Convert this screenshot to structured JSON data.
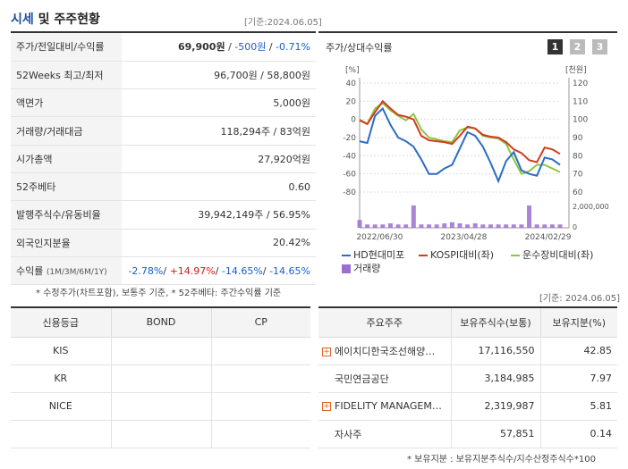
{
  "header": {
    "title_a": "시세",
    "title_b": " 및 주주현황",
    "ref_date": "[기준:2024.06.05]"
  },
  "price": {
    "rows": [
      {
        "label": "주가/전일대비/수익률",
        "value_a": "69,900원",
        "sep1": " / ",
        "value_b": "-500원",
        "sep2": " / ",
        "value_c": "-0.71%"
      },
      {
        "label": "52Weeks 최고/최저",
        "value": "96,700원 / 58,800원"
      },
      {
        "label": "액면가",
        "value": "5,000원"
      },
      {
        "label": "거래량/거래대금",
        "value": "118,294주 / 83억원"
      },
      {
        "label": "시가총액",
        "value": "27,920억원"
      },
      {
        "label": "52주베타",
        "value": "0.60"
      },
      {
        "label": "발행주식수/유동비율",
        "value": "39,942,149주 / 56.95%"
      },
      {
        "label": "외국인지분율",
        "value": "20.42%"
      }
    ],
    "return_row": {
      "label": "수익률",
      "label_small": "(1M/3M/6M/1Y)",
      "r1": "-2.78%",
      "r2": "+14.97%",
      "r3": "-14.65%",
      "r4": "-14.65%",
      "sep": "/ "
    }
  },
  "chart": {
    "title": "주가/상대수익률",
    "buttons": [
      "1",
      "2",
      "3"
    ],
    "left_unit": "[%]",
    "right_unit": "[천원]",
    "left_ticks": [
      "40",
      "20",
      "0",
      "-20",
      "-40",
      "-60",
      "-80"
    ],
    "right_ticks": [
      "120",
      "110",
      "100",
      "90",
      "80",
      "70",
      "60"
    ],
    "volume_tick": "2,000,000",
    "volume_zero": "0",
    "x_ticks": [
      "2022/06/30",
      "2023/04/28",
      "2024/02/29"
    ],
    "legend": [
      {
        "name": "HD현대미포",
        "color": "#2b6cc4"
      },
      {
        "name": "KOSPI대비(좌)",
        "color": "#d33b1f"
      },
      {
        "name": "운수장비대비(좌)",
        "color": "#8cc63f"
      },
      {
        "name": "거래량",
        "color": "#9a6fd0"
      }
    ]
  },
  "chart_data": {
    "type": "line",
    "series": [
      {
        "name": "HD현대미포",
        "axis": "right",
        "values": [
          88,
          87,
          102,
          106,
          97,
          90,
          88,
          85,
          78,
          70,
          70,
          73,
          75,
          84,
          93,
          91,
          85,
          76,
          66,
          77,
          82,
          72,
          70,
          69,
          79,
          78,
          75
        ]
      },
      {
        "name": "KOSPI대비(좌)",
        "axis": "left",
        "values": [
          -1,
          -5,
          8,
          20,
          12,
          5,
          3,
          0,
          -18,
          -23,
          -24,
          -25,
          -27,
          -18,
          -8,
          -10,
          -17,
          -19,
          -20,
          -25,
          -33,
          -37,
          -45,
          -47,
          -31,
          -33,
          -38
        ]
      },
      {
        "name": "운수장비대비(좌)",
        "axis": "left",
        "values": [
          0,
          -5,
          12,
          18,
          10,
          4,
          -1,
          6,
          -11,
          -20,
          -22,
          -24,
          -25,
          -12,
          -9,
          -10,
          -18,
          -20,
          -21,
          -27,
          -44,
          -60,
          -57,
          -50,
          -50,
          -54,
          -58
        ]
      },
      {
        "name": "거래량",
        "axis": "volume",
        "values": [
          0.35,
          0.15,
          0.15,
          0.15,
          0.2,
          0.15,
          0.15,
          1.0,
          0.15,
          0.15,
          0.15,
          0.2,
          0.25,
          0.2,
          0.15,
          0.2,
          0.15,
          0.15,
          0.15,
          0.15,
          0.15,
          0.15,
          1.0,
          0.15,
          0.15,
          0.15,
          0.15
        ]
      }
    ],
    "left_ylim": [
      -80,
      40
    ],
    "right_ylim": [
      60,
      120
    ],
    "x_labels": [
      "2022/06/30",
      "2023/04/28",
      "2024/02/29"
    ]
  },
  "notes": {
    "price_note": "* 수정주가(차트포함), 보통주 기준, * 52주베타: 주간수익률 기준",
    "ref_date2": "[기준: 2024.06.05]",
    "holder_note": "* 보유지분 : 보유지분주식수/지수산정주식수*100"
  },
  "credit": {
    "headers": [
      "신용등급",
      "BOND",
      "CP"
    ],
    "rows": [
      [
        "KIS",
        "",
        ""
      ],
      [
        "KR",
        "",
        ""
      ],
      [
        "NICE",
        "",
        ""
      ],
      [
        "",
        "",
        ""
      ]
    ]
  },
  "holders": {
    "headers": [
      "주요주주",
      "보유주식수(보통)",
      "보유지분(%)"
    ],
    "rows": [
      {
        "name": "에이치디한국조선해양…",
        "plus": true,
        "shares": "17,116,550",
        "pct": "42.85"
      },
      {
        "name": "국민연금공단",
        "plus": false,
        "shares": "3,184,985",
        "pct": "7.97"
      },
      {
        "name": "FIDELITY MANAGEM…",
        "plus": true,
        "shares": "2,319,987",
        "pct": "5.81"
      },
      {
        "name": "자사주",
        "plus": false,
        "shares": "57,851",
        "pct": "0.14"
      }
    ]
  }
}
